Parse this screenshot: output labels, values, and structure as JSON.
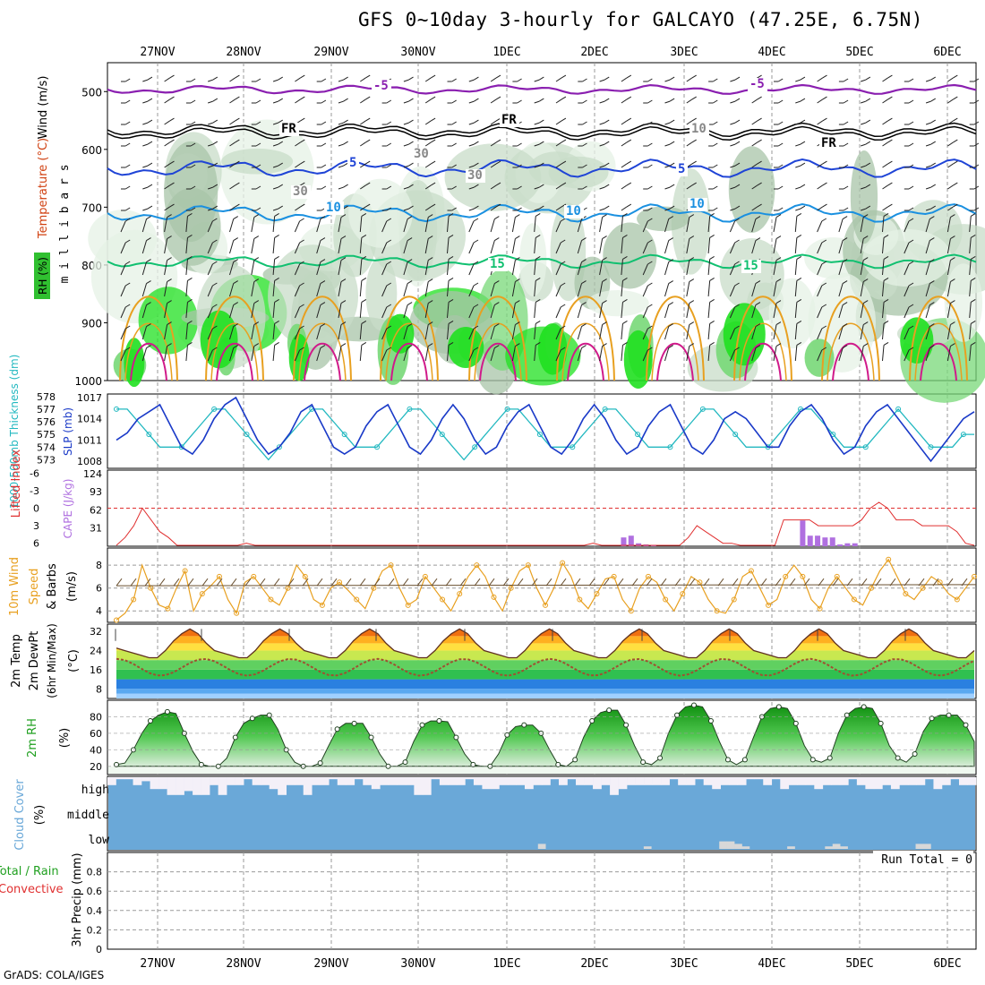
{
  "title": "GFS 0~10day 3-hourly for GALCAYO (47.25E, 6.75N)",
  "footer": "GrADS: COLA/IGES",
  "dates": [
    "27NOV",
    "28NOV",
    "29NOV",
    "30NOV",
    "1DEC",
    "2DEC",
    "3DEC",
    "4DEC",
    "5DEC",
    "6DEC"
  ],
  "colors": {
    "grid": "#9a9a9a",
    "purple": "#8a1fb0",
    "black": "#000000",
    "blue": "#1f44d6",
    "lightblue": "#1a90e0",
    "green": "#10c070",
    "orange": "#e8a020",
    "magenta": "#d01a8a",
    "slp": "#1a3ac8",
    "thick": "#22b8c0",
    "cape": "#b070e0",
    "lifted": "#e03030",
    "wind10": "#e8a020",
    "cloud": "#6aa8d8"
  },
  "chart_data": [
    {
      "type": "contour",
      "panel": "upper-air",
      "ylabel": "m i l l i b a r s",
      "legend_labels": [
        "Wind (m/s)",
        "Temperature (°C)",
        "RH (%)"
      ],
      "yticks": [
        500,
        600,
        700,
        800,
        900,
        1000
      ],
      "ylim": [
        1000,
        450
      ],
      "contour_labels": [
        "-5",
        "-5",
        "FR",
        "FR",
        "FR",
        "5",
        "5",
        "10",
        "10",
        "10",
        "15",
        "15",
        "10",
        "30",
        "30",
        "30"
      ]
    },
    {
      "type": "line",
      "panel": "thickness-slp",
      "ylabel_left": "1000-500mb Thickness (dm)",
      "ylabel_right": "SLP (mb)",
      "yticks_left": [
        573,
        574,
        575,
        576,
        577,
        578
      ],
      "yticks_right": [
        1008,
        1011,
        1014,
        1017
      ],
      "series": [
        {
          "name": "SLP (mb)",
          "values": [
            1011,
            1012,
            1014,
            1015,
            1016,
            1013,
            1010,
            1009,
            1011,
            1014,
            1016,
            1017,
            1014,
            1011,
            1009,
            1010,
            1012,
            1015,
            1016,
            1013,
            1010,
            1009,
            1010,
            1013,
            1015,
            1016,
            1013,
            1010,
            1009,
            1011,
            1014,
            1016,
            1014,
            1011,
            1009,
            1010,
            1013,
            1015,
            1016,
            1013,
            1010,
            1009,
            1011,
            1014,
            1016,
            1014,
            1011,
            1009,
            1010,
            1013,
            1015,
            1016,
            1013,
            1010,
            1009,
            1011,
            1014,
            1015,
            1014,
            1012,
            1010,
            1010,
            1013,
            1015,
            1016,
            1014,
            1011,
            1009,
            1010,
            1013,
            1015,
            1016,
            1014,
            1012,
            1010,
            1008,
            1010,
            1012,
            1014,
            1015
          ]
        },
        {
          "name": "Thickness (dm)",
          "values": [
            577,
            577,
            576,
            575,
            574,
            574,
            574,
            575,
            576,
            577,
            577,
            576,
            575,
            574,
            573,
            574,
            575,
            576,
            577,
            577,
            576,
            575,
            574,
            574,
            574,
            575,
            576,
            577,
            577,
            576,
            575,
            574,
            573,
            574,
            575,
            576,
            577,
            577,
            576,
            575,
            574,
            574,
            574,
            575,
            576,
            577,
            577,
            576,
            575,
            574,
            574,
            574,
            575,
            576,
            577,
            577,
            576,
            575,
            574,
            574,
            574,
            575,
            576,
            577,
            577,
            576,
            575,
            574,
            574,
            574,
            575,
            576,
            577,
            576,
            575,
            574,
            574,
            574,
            575,
            575
          ]
        }
      ]
    },
    {
      "type": "bar",
      "panel": "cape-lifted",
      "ylabel_left": "Lifted Index",
      "ylabel_right": "CAPE (J/kg)",
      "yticks_left": [
        -6,
        -3,
        0,
        3,
        6
      ],
      "yticks_right": [
        31,
        62,
        93,
        124
      ],
      "cape_values": [
        0,
        0,
        0,
        0,
        0,
        0,
        0,
        0,
        0,
        0,
        0,
        0,
        0,
        0,
        0,
        0,
        0,
        0,
        0,
        0,
        0,
        0,
        0,
        0,
        0,
        0,
        0,
        0,
        0,
        0,
        0,
        0,
        0,
        0,
        0,
        0,
        0,
        0,
        0,
        0,
        0,
        0,
        0,
        0,
        0,
        0,
        0,
        0,
        0,
        0,
        0,
        0,
        0,
        0,
        0,
        0,
        0,
        0,
        0,
        0,
        0,
        0,
        0,
        0,
        0,
        0,
        0,
        0,
        15,
        18,
        5,
        3,
        2,
        0,
        0,
        0,
        0,
        0,
        0,
        0,
        0,
        0,
        0,
        0,
        0,
        0,
        0,
        0,
        0,
        0,
        0,
        0,
        44,
        18,
        18,
        15,
        15,
        3,
        5,
        5,
        0,
        0,
        0,
        0,
        0,
        0,
        0,
        0,
        0,
        0,
        0,
        0,
        0,
        0,
        0,
        0
      ],
      "lifted_values": [
        7,
        5,
        3,
        0,
        2,
        4,
        5,
        8,
        9,
        9,
        9,
        9,
        9,
        8,
        7,
        6,
        7,
        9,
        9,
        9,
        9,
        9,
        9,
        9,
        9,
        8,
        7,
        8,
        9,
        9,
        9,
        9,
        9,
        9,
        9,
        9,
        8,
        9,
        9,
        9,
        9,
        9,
        9,
        9,
        9,
        9,
        9,
        9,
        9,
        9,
        9,
        9,
        9,
        9,
        7,
        6,
        7,
        8,
        9,
        9,
        9,
        9,
        9,
        9,
        9,
        9,
        5,
        3,
        4,
        5,
        6,
        6,
        7,
        7,
        9,
        9,
        9,
        2,
        2,
        2,
        2,
        3,
        3,
        3,
        3,
        3,
        2,
        0,
        -1,
        0,
        2,
        2,
        2,
        3,
        3,
        3,
        3,
        4,
        6,
        7
      ]
    },
    {
      "type": "line",
      "panel": "wind10m",
      "ylabel": "10m Wind Speed (m/s) & Barbs",
      "yticks": [
        4,
        6,
        8
      ],
      "ylim": [
        3,
        9.5
      ],
      "values": [
        3.2,
        3.8,
        5,
        8,
        6,
        4.5,
        4.2,
        6,
        7.5,
        4,
        5.5,
        6.2,
        7,
        5,
        3.8,
        6.5,
        7,
        6,
        5,
        4.5,
        6,
        8,
        7,
        5,
        4.5,
        6,
        6.5,
        5.8,
        5,
        4.2,
        6,
        7.5,
        8,
        6,
        4.5,
        5,
        7,
        6,
        5,
        4,
        5.5,
        7,
        8,
        7,
        5.2,
        4,
        6,
        7.5,
        8,
        6,
        4.5,
        6,
        8.2,
        7,
        5,
        4.2,
        5.5,
        6.8,
        7,
        5,
        4,
        6,
        7,
        6.5,
        5,
        4,
        5.5,
        7,
        6.5,
        5,
        4,
        3.8,
        5,
        7,
        7.5,
        6,
        4.5,
        5,
        7,
        8,
        7,
        5,
        4.2,
        6,
        7,
        6,
        5,
        4.5,
        6,
        7.5,
        8.5,
        7,
        5.5,
        5,
        6,
        7,
        6.5,
        5.5,
        5,
        6,
        7
      ]
    },
    {
      "type": "area",
      "panel": "temp-dewpt",
      "ylabel": "2m Temp / 2m DewPt (6hr Min/Max) (°C)",
      "yticks": [
        8,
        16,
        24,
        32
      ],
      "ylim": [
        4,
        35
      ],
      "temp_values": [
        25,
        24,
        23,
        22,
        21,
        21,
        24,
        28,
        31,
        33,
        31,
        27,
        24,
        23,
        22,
        21,
        21,
        24,
        28,
        31,
        33,
        31,
        27,
        24,
        23,
        22,
        21,
        21,
        24,
        28,
        31,
        33,
        31,
        27,
        24,
        23,
        22,
        21,
        21,
        24,
        28,
        31,
        33,
        31,
        27,
        24,
        23,
        22,
        21,
        21,
        24,
        28,
        31,
        33,
        31,
        27,
        24,
        23,
        22,
        21,
        21,
        24,
        28,
        31,
        33,
        31,
        27,
        24,
        23,
        22,
        21,
        21,
        24,
        28,
        31,
        33,
        31,
        27,
        24,
        23,
        22,
        21,
        21,
        24,
        28,
        31,
        33,
        31,
        27,
        24,
        23,
        22,
        21,
        21,
        24,
        28,
        31,
        33,
        31,
        27,
        24,
        23,
        22,
        21,
        21,
        24
      ]
    },
    {
      "type": "area",
      "panel": "rh2m",
      "ylabel": "2m RH (%)",
      "yticks": [
        20,
        40,
        60,
        80
      ],
      "ylim": [
        10,
        100
      ],
      "values": [
        22,
        24,
        40,
        60,
        75,
        82,
        86,
        84,
        60,
        38,
        22,
        20,
        20,
        30,
        55,
        72,
        78,
        82,
        82,
        65,
        40,
        25,
        20,
        18,
        24,
        45,
        65,
        72,
        72,
        72,
        55,
        35,
        20,
        18,
        25,
        50,
        70,
        75,
        75,
        74,
        55,
        35,
        22,
        15,
        15,
        35,
        58,
        68,
        70,
        70,
        60,
        40,
        22,
        20,
        28,
        55,
        75,
        85,
        88,
        88,
        70,
        45,
        25,
        22,
        30,
        60,
        82,
        92,
        94,
        92,
        75,
        50,
        28,
        22,
        28,
        55,
        80,
        90,
        92,
        90,
        72,
        45,
        28,
        25,
        30,
        60,
        82,
        90,
        92,
        90,
        72,
        45,
        30,
        25,
        35,
        62,
        78,
        82,
        82,
        82,
        70,
        50
      ]
    },
    {
      "type": "bar",
      "panel": "cloud-cover",
      "ylabel": "Cloud Cover (%)",
      "ytick_labels": [
        "high",
        "middle",
        "low"
      ],
      "high_values": [
        60,
        90,
        90,
        60,
        80,
        40,
        40,
        10,
        10,
        30,
        10,
        10,
        60,
        10,
        60,
        60,
        90,
        60,
        60,
        40,
        10,
        60,
        60,
        10,
        60,
        60,
        90,
        60,
        60,
        90,
        60,
        40,
        60,
        60,
        60,
        60,
        10,
        10,
        90,
        60,
        60,
        60,
        90,
        60,
        40,
        40,
        60,
        60,
        60,
        40,
        60,
        60,
        90,
        60,
        90,
        60,
        60,
        40,
        60,
        10,
        40,
        60,
        60,
        60,
        60,
        60,
        90,
        60,
        60,
        90,
        60,
        40,
        60,
        60,
        60,
        90,
        90,
        60,
        90,
        40,
        60,
        60,
        60,
        40,
        60,
        60,
        60,
        90,
        60,
        40,
        40,
        60,
        40,
        60,
        60,
        60,
        90,
        40,
        60,
        90,
        60,
        60
      ],
      "low_values": [
        0,
        0,
        0,
        0,
        0,
        0,
        0,
        0,
        0,
        0,
        0,
        0,
        0,
        0,
        0,
        0,
        0,
        0,
        0,
        0,
        0,
        0,
        0,
        0,
        0,
        0,
        0,
        0,
        0,
        0,
        0,
        0,
        0,
        0,
        0,
        0,
        0,
        0,
        0,
        0,
        0,
        0,
        0,
        0,
        0,
        0,
        0,
        0,
        0,
        0,
        0,
        0,
        0,
        0,
        0,
        0,
        0,
        40,
        0,
        0,
        0,
        0,
        0,
        0,
        0,
        0,
        0,
        0,
        0,
        0,
        0,
        20,
        0,
        0,
        0,
        0,
        0,
        0,
        0,
        0,
        0,
        60,
        60,
        40,
        20,
        0,
        0,
        0,
        0,
        0,
        20,
        0,
        0,
        0,
        0,
        20,
        40,
        20,
        0,
        0,
        0,
        0,
        0,
        0,
        0,
        0,
        0,
        40,
        40,
        0,
        0,
        0,
        0,
        0,
        0
      ]
    },
    {
      "type": "bar",
      "panel": "precip",
      "ylabel": "3hr Precip (mm)",
      "legend_labels": [
        "Total / Rain",
        "Convective"
      ],
      "yticks": [
        0,
        0.2,
        0.4,
        0.6,
        0.8
      ],
      "ylim": [
        0,
        1
      ],
      "run_total": "Run Total = 0",
      "values": []
    }
  ]
}
